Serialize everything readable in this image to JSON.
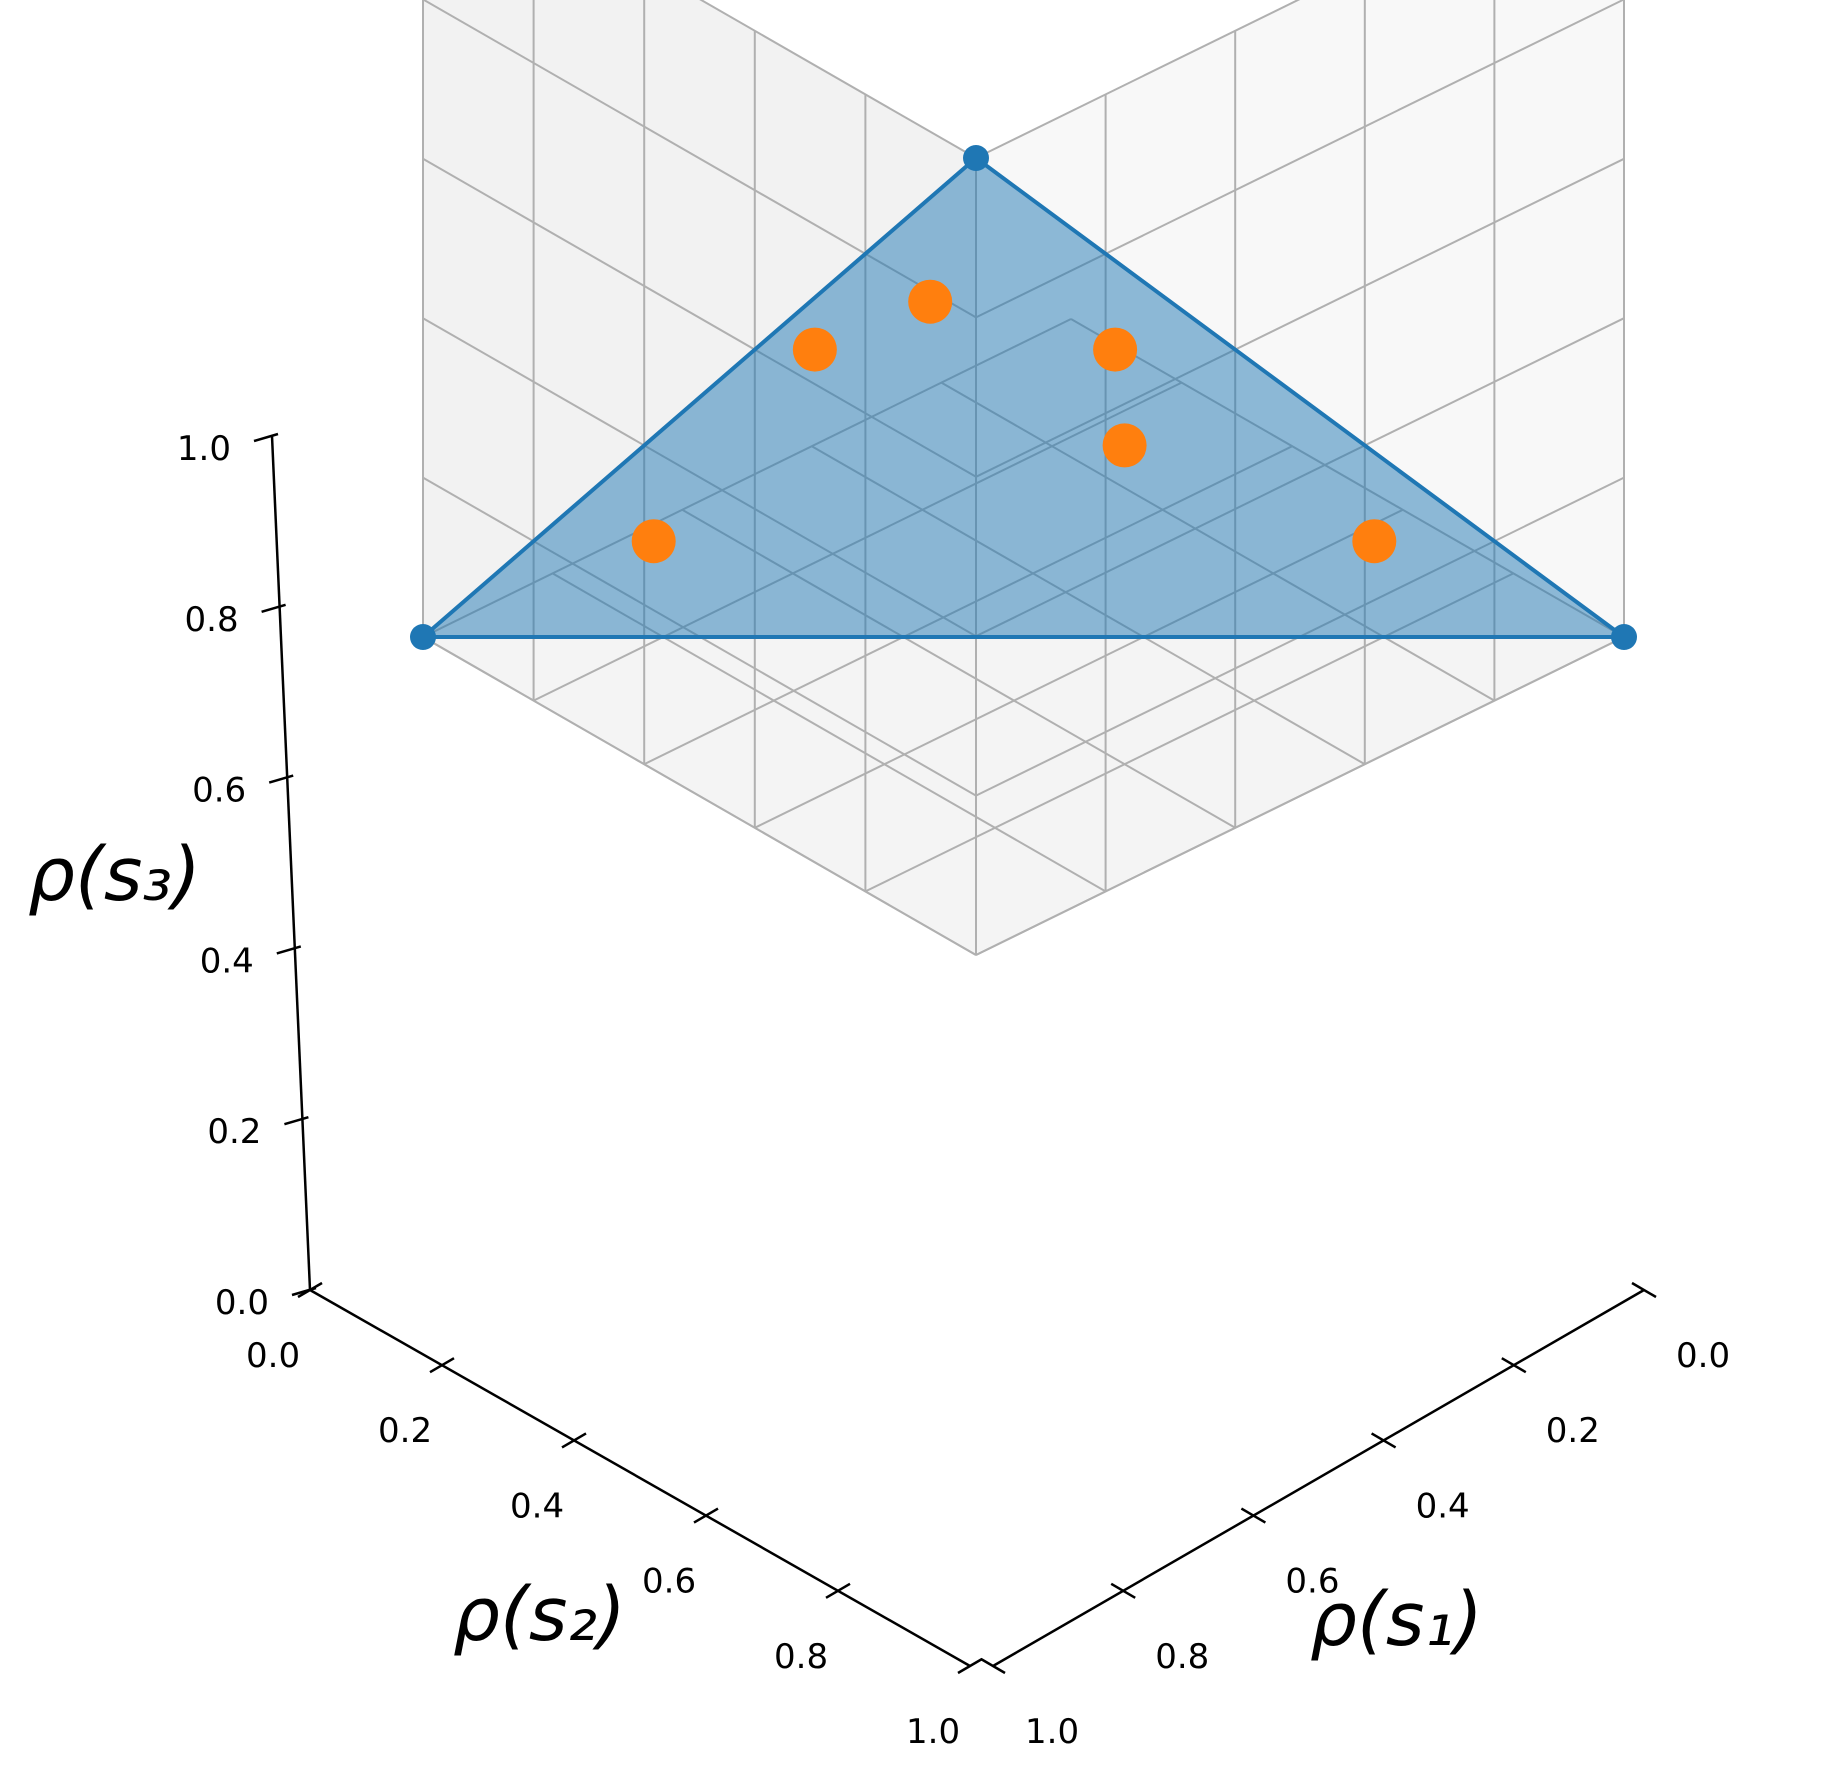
{
  "chart_data": {
    "type": "scatter",
    "projection": "3d",
    "title": "",
    "axes": {
      "x": {
        "label": "ρ(s₁)",
        "range": [
          0,
          1
        ],
        "ticks": [
          "0.0",
          "0.2",
          "0.4",
          "0.6",
          "0.8",
          "1.0"
        ]
      },
      "y": {
        "label": "ρ(s₂)",
        "range": [
          0,
          1
        ],
        "ticks": [
          "0.0",
          "0.2",
          "0.4",
          "0.6",
          "0.8",
          "1.0"
        ]
      },
      "z": {
        "label": "ρ(s₃)",
        "range": [
          0,
          1
        ],
        "ticks": [
          "0.0",
          "0.2",
          "0.4",
          "0.6",
          "0.8",
          "1.0"
        ]
      }
    },
    "grid": true,
    "simplex": {
      "color": "#1f77b4",
      "fill_opacity": 0.5,
      "vertices": [
        {
          "x": 1,
          "y": 0,
          "z": 0
        },
        {
          "x": 0,
          "y": 1,
          "z": 0
        },
        {
          "x": 0,
          "y": 0,
          "z": 1
        }
      ]
    },
    "series": [
      {
        "color": "#ff7f0e",
        "points": [
          {
            "x": 0.7,
            "y": 0.1,
            "z": 0.2
          },
          {
            "x": 0.4,
            "y": 0.2,
            "z": 0.4
          },
          {
            "x": 0.3,
            "y": 0.1,
            "z": 0.6
          },
          {
            "x": 0.1,
            "y": 0.2,
            "z": 0.7
          },
          {
            "x": 0.05,
            "y": 0.35,
            "z": 0.6
          },
          {
            "x": 0.1,
            "y": 0.7,
            "z": 0.2
          }
        ]
      }
    ]
  }
}
